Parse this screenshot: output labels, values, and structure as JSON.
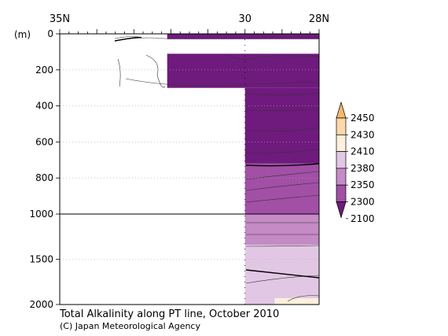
{
  "chart_data": {
    "type": "heatmap",
    "title": "Total Alkalinity along PT line, October 2010",
    "credit": "(C) Japan Meteorological Agency",
    "ylabel": "(m)",
    "x_top_ticks": [
      "35N",
      "30",
      "28N"
    ],
    "x_range": [
      35,
      28
    ],
    "x_top_ticks_values": [
      35,
      30,
      28
    ],
    "y_ticks_upper": [
      0,
      200,
      400,
      600,
      800,
      1000
    ],
    "y_ticks_lower": [
      1000,
      1500,
      2000
    ],
    "y_range": [
      0,
      2000
    ],
    "y_break_depth": 1000,
    "grid": "dotted",
    "colorbar": {
      "position": "right",
      "levels": [
        2100,
        2300,
        2350,
        2380,
        2410,
        2430,
        2450
      ],
      "colors": [
        "#6f1a7d",
        "#a24fa6",
        "#c48bc6",
        "#e2c7e4",
        "#fdf0dc",
        "#fbd9a8",
        "#f6b86a"
      ]
    },
    "regions": [
      {
        "lat_from": 32.1,
        "lat_to": 28,
        "depth_from": 0,
        "depth_to": 30,
        "value": 2290
      },
      {
        "lat_from": 32.1,
        "lat_to": 28,
        "depth_from": 110,
        "depth_to": 300,
        "value": 2290
      },
      {
        "lat_from": 30,
        "lat_to": 28,
        "depth_from": 300,
        "depth_to": 720,
        "value": 2290
      },
      {
        "lat_from": 30,
        "lat_to": 28,
        "depth_from": 720,
        "depth_to": 1000,
        "value": 2320
      },
      {
        "lat_from": 30,
        "lat_to": 28,
        "depth_from": 1000,
        "depth_to": 1340,
        "value": 2365
      },
      {
        "lat_from": 30,
        "lat_to": 28,
        "depth_from": 1340,
        "depth_to": 2000,
        "value": 2395
      },
      {
        "lat_from": 29.2,
        "lat_to": 28,
        "depth_from": 1930,
        "depth_to": 2000,
        "value": 2420
      }
    ]
  }
}
